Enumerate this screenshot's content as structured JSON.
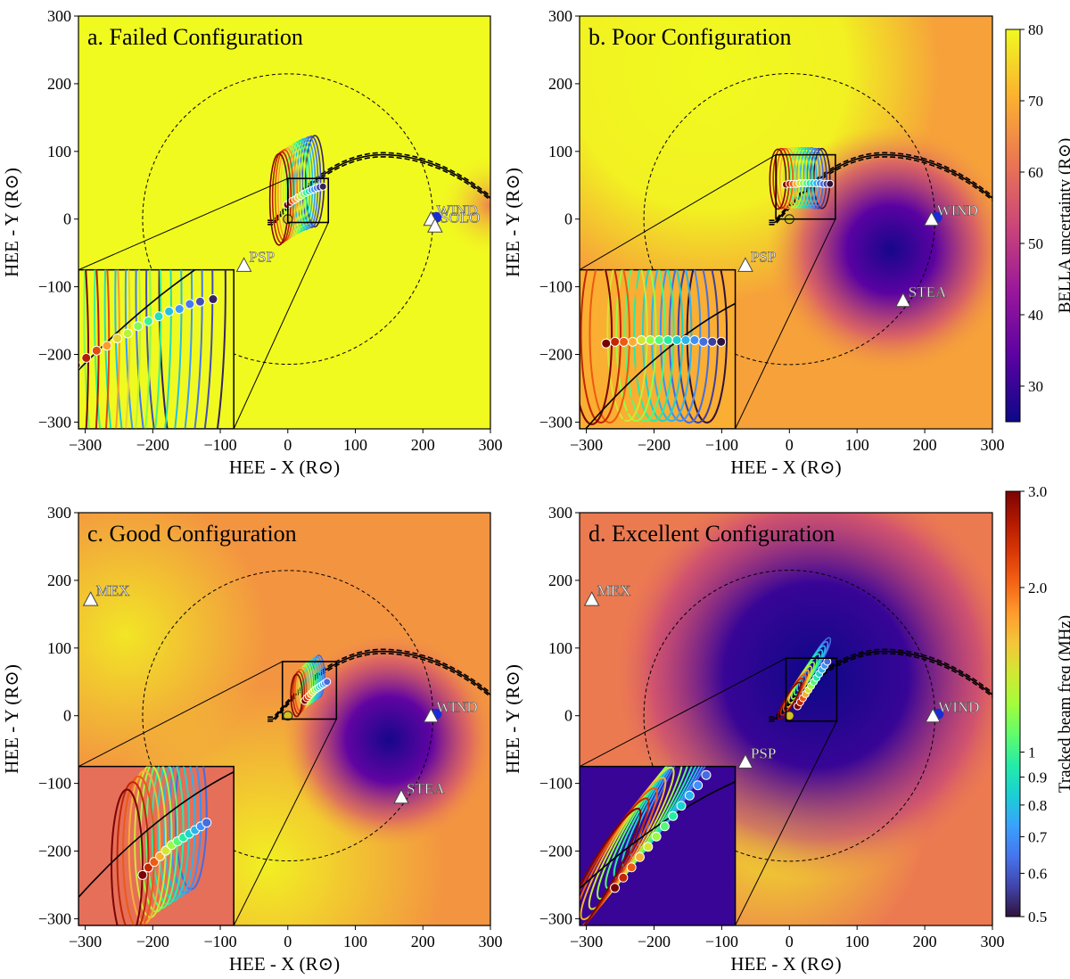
{
  "figure": {
    "colorbar_uncertainty": {
      "label": "BELLA uncertainty (R⊙)",
      "ticks": [
        30,
        40,
        50,
        60,
        70,
        80
      ],
      "range": [
        25,
        80
      ],
      "colormap": "plasma",
      "colors": [
        "#0d0887",
        "#5b02a3",
        "#9a179b",
        "#cb4678",
        "#eb7852",
        "#fbb32f",
        "#f0f921"
      ]
    },
    "colorbar_frequency": {
      "label": "Tracked beam freq (MHz)",
      "ticks": [
        0.5,
        0.6,
        0.7,
        0.8,
        0.9,
        1,
        2.0,
        3.0
      ],
      "tick_labels": [
        "0.5",
        "0.6",
        "0.7",
        "0.8",
        "0.9",
        "1",
        "2.0",
        "3.0"
      ],
      "range": [
        0.5,
        3.0
      ],
      "scale": "log",
      "colormap": "turbo",
      "colors": [
        "#30123b",
        "#4145ab",
        "#4675ed",
        "#39a2fc",
        "#1bcfd4",
        "#24eca6",
        "#61fc6c",
        "#a4fc3b",
        "#d1e834",
        "#f3c63a",
        "#fe9b2d",
        "#f36315",
        "#d93806",
        "#b11901",
        "#7a0403"
      ]
    },
    "ring_color": "#f1fa1f",
    "ring_radius": 215
  },
  "chart_data": [
    {
      "type": "scatter",
      "title": "a. Failed Configuration",
      "xlabel": "HEE - X  (R⊙)",
      "ylabel": "HEE - Y  (R⊙)",
      "xlim": [
        -310,
        300
      ],
      "ylim": [
        -310,
        300
      ],
      "xticks": [
        -300,
        -200,
        -100,
        0,
        100,
        200,
        300
      ],
      "yticks": [
        -300,
        -200,
        -100,
        0,
        100,
        200,
        300
      ],
      "background": "uniform high uncertainty (~80 R⊙) with orange tint near x=300",
      "spacecraft": [
        {
          "name": "PSP",
          "x": -65,
          "y": -68
        },
        {
          "name": "WIND",
          "x": 212,
          "y": 0
        },
        {
          "name": "SOLO",
          "x": 218,
          "y": -10
        }
      ],
      "tracked_points": [
        {
          "x": -1,
          "y": 21,
          "freq": 3.0
        },
        {
          "x": 3,
          "y": 24,
          "freq": 2.6
        },
        {
          "x": 7,
          "y": 27,
          "freq": 2.2
        },
        {
          "x": 11,
          "y": 29,
          "freq": 1.8
        },
        {
          "x": 15,
          "y": 32,
          "freq": 1.5
        },
        {
          "x": 19,
          "y": 34,
          "freq": 1.3
        },
        {
          "x": 23,
          "y": 37,
          "freq": 1.15
        },
        {
          "x": 27,
          "y": 39,
          "freq": 1.0
        },
        {
          "x": 31,
          "y": 41,
          "freq": 0.9
        },
        {
          "x": 35,
          "y": 43,
          "freq": 0.8
        },
        {
          "x": 39,
          "y": 44,
          "freq": 0.72
        },
        {
          "x": 43,
          "y": 46,
          "freq": 0.65
        },
        {
          "x": 47,
          "y": 47,
          "freq": 0.58
        },
        {
          "x": 52,
          "y": 48,
          "freq": 0.52
        }
      ],
      "inset": {
        "xlim": [
          0,
          60
        ],
        "ylim": [
          -5,
          60
        ]
      }
    },
    {
      "type": "scatter",
      "title": "b. Poor Configuration",
      "xlabel": "HEE - X  (R⊙)",
      "ylabel": "HEE - Y  (R⊙)",
      "xlim": [
        -310,
        300
      ],
      "ylim": [
        -310,
        300
      ],
      "xticks": [
        -300,
        -200,
        -100,
        0,
        100,
        200,
        300
      ],
      "yticks": [
        -300,
        -200,
        -100,
        0,
        100,
        200,
        300
      ],
      "background": "minimum uncertainty (~25 R⊙) near x=150, y=-50",
      "spacecraft": [
        {
          "name": "PSP",
          "x": -65,
          "y": -68
        },
        {
          "name": "WIND",
          "x": 210,
          "y": 0
        },
        {
          "name": "STEA",
          "x": 168,
          "y": -120
        }
      ],
      "tracked_points": [
        {
          "x": -5,
          "y": 51,
          "freq": 3.0
        },
        {
          "x": 0,
          "y": 52,
          "freq": 2.5
        },
        {
          "x": 5,
          "y": 52,
          "freq": 2.1
        },
        {
          "x": 10,
          "y": 52,
          "freq": 1.7
        },
        {
          "x": 15,
          "y": 53,
          "freq": 1.4
        },
        {
          "x": 20,
          "y": 53,
          "freq": 1.2
        },
        {
          "x": 25,
          "y": 53,
          "freq": 1.05
        },
        {
          "x": 30,
          "y": 53,
          "freq": 0.95
        },
        {
          "x": 35,
          "y": 53,
          "freq": 0.85
        },
        {
          "x": 40,
          "y": 53,
          "freq": 0.77
        },
        {
          "x": 45,
          "y": 53,
          "freq": 0.7
        },
        {
          "x": 50,
          "y": 52,
          "freq": 0.63
        },
        {
          "x": 55,
          "y": 52,
          "freq": 0.56
        },
        {
          "x": 60,
          "y": 52,
          "freq": 0.5
        }
      ],
      "inset": {
        "xlim": [
          -20,
          68
        ],
        "ylim": [
          0,
          95
        ]
      }
    },
    {
      "type": "scatter",
      "title": "c. Good Configuration",
      "xlabel": "HEE - X  (R⊙)",
      "ylabel": "HEE - Y  (R⊙)",
      "xlim": [
        -310,
        300
      ],
      "ylim": [
        -310,
        300
      ],
      "xticks": [
        -300,
        -200,
        -100,
        0,
        100,
        200,
        300
      ],
      "yticks": [
        -300,
        -200,
        -100,
        0,
        100,
        200,
        300
      ],
      "background": "minimum uncertainty near x=150, y=-40",
      "spacecraft": [
        {
          "name": "MEX",
          "x": -292,
          "y": 172
        },
        {
          "name": "WIND",
          "x": 212,
          "y": 0
        },
        {
          "name": "STEA",
          "x": 168,
          "y": -120
        }
      ],
      "tracked_points": [
        {
          "x": 25,
          "y": 22,
          "freq": 3.0
        },
        {
          "x": 28,
          "y": 26,
          "freq": 2.5
        },
        {
          "x": 31,
          "y": 29,
          "freq": 2.1
        },
        {
          "x": 34,
          "y": 32,
          "freq": 1.7
        },
        {
          "x": 37,
          "y": 35,
          "freq": 1.4
        },
        {
          "x": 40,
          "y": 38,
          "freq": 1.2
        },
        {
          "x": 43,
          "y": 40,
          "freq": 1.05
        },
        {
          "x": 46,
          "y": 42,
          "freq": 0.95
        },
        {
          "x": 49,
          "y": 44,
          "freq": 0.85
        },
        {
          "x": 52,
          "y": 46,
          "freq": 0.77
        },
        {
          "x": 55,
          "y": 48,
          "freq": 0.7
        },
        {
          "x": 58,
          "y": 50,
          "freq": 0.63
        }
      ],
      "inset": {
        "xlim": [
          -8,
          72
        ],
        "ylim": [
          -5,
          80
        ]
      }
    },
    {
      "type": "scatter",
      "title": "d. Excellent Configuration",
      "xlabel": "HEE - X  (R⊙)",
      "ylabel": "HEE - Y  (R⊙)",
      "xlim": [
        -310,
        300
      ],
      "ylim": [
        -310,
        300
      ],
      "xticks": [
        -300,
        -200,
        -100,
        0,
        100,
        200,
        300
      ],
      "yticks": [
        -300,
        -200,
        -100,
        0,
        100,
        200,
        300
      ],
      "background": "low uncertainty over a wide region around the Sun",
      "spacecraft": [
        {
          "name": "MEX",
          "x": -292,
          "y": 172
        },
        {
          "name": "PSP",
          "x": -65,
          "y": -68
        },
        {
          "name": "WIND",
          "x": 212,
          "y": 0
        }
      ],
      "tracked_points": [
        {
          "x": 12,
          "y": 14,
          "freq": 3.0
        },
        {
          "x": 16,
          "y": 20,
          "freq": 2.5
        },
        {
          "x": 20,
          "y": 26,
          "freq": 2.1
        },
        {
          "x": 24,
          "y": 32,
          "freq": 1.7
        },
        {
          "x": 28,
          "y": 38,
          "freq": 1.4
        },
        {
          "x": 32,
          "y": 44,
          "freq": 1.2
        },
        {
          "x": 36,
          "y": 50,
          "freq": 1.05
        },
        {
          "x": 40,
          "y": 56,
          "freq": 0.95
        },
        {
          "x": 44,
          "y": 62,
          "freq": 0.85
        },
        {
          "x": 48,
          "y": 68,
          "freq": 0.77
        },
        {
          "x": 52,
          "y": 74,
          "freq": 0.7
        },
        {
          "x": 56,
          "y": 80,
          "freq": 0.63
        }
      ],
      "inset": {
        "xlim": [
          -5,
          70
        ],
        "ylim": [
          -8,
          85
        ]
      }
    }
  ]
}
